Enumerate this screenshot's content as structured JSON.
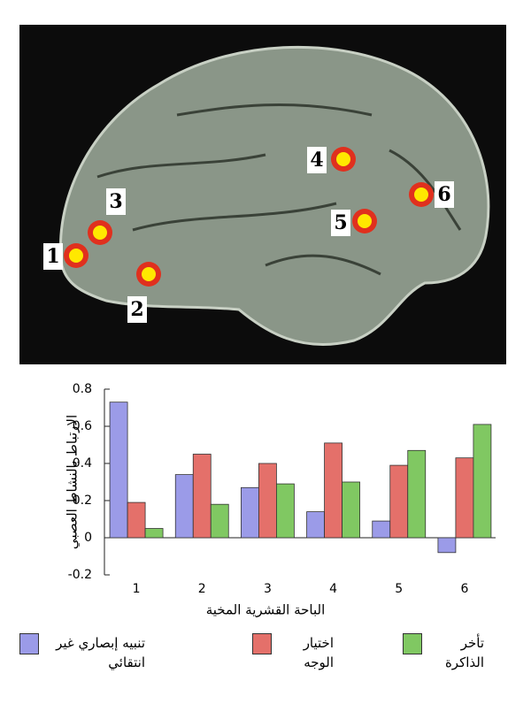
{
  "chart_data": {
    "type": "bar",
    "y_label": "الارتباط بالنشاط العصبي",
    "x_label": "الباحة القشرية المخية",
    "categories": [
      "1",
      "2",
      "3",
      "4",
      "5",
      "6"
    ],
    "series": [
      {
        "name": "تنبيه إبصاري غير انتقائي",
        "color": "#9b9be8",
        "values": [
          0.73,
          0.34,
          0.27,
          0.14,
          0.09,
          -0.08
        ]
      },
      {
        "name": "اختيار الوجه",
        "color": "#e4706a",
        "values": [
          0.19,
          0.45,
          0.4,
          0.51,
          0.39,
          0.43
        ]
      },
      {
        "name": "تأخر الذاكرة",
        "color": "#80c862",
        "values": [
          0.05,
          0.18,
          0.29,
          0.3,
          0.47,
          0.61
        ]
      }
    ],
    "ylim": [
      -0.2,
      0.8
    ],
    "yticks": [
      -0.2,
      0,
      0.2,
      0.4,
      0.6,
      0.8
    ]
  }
}
